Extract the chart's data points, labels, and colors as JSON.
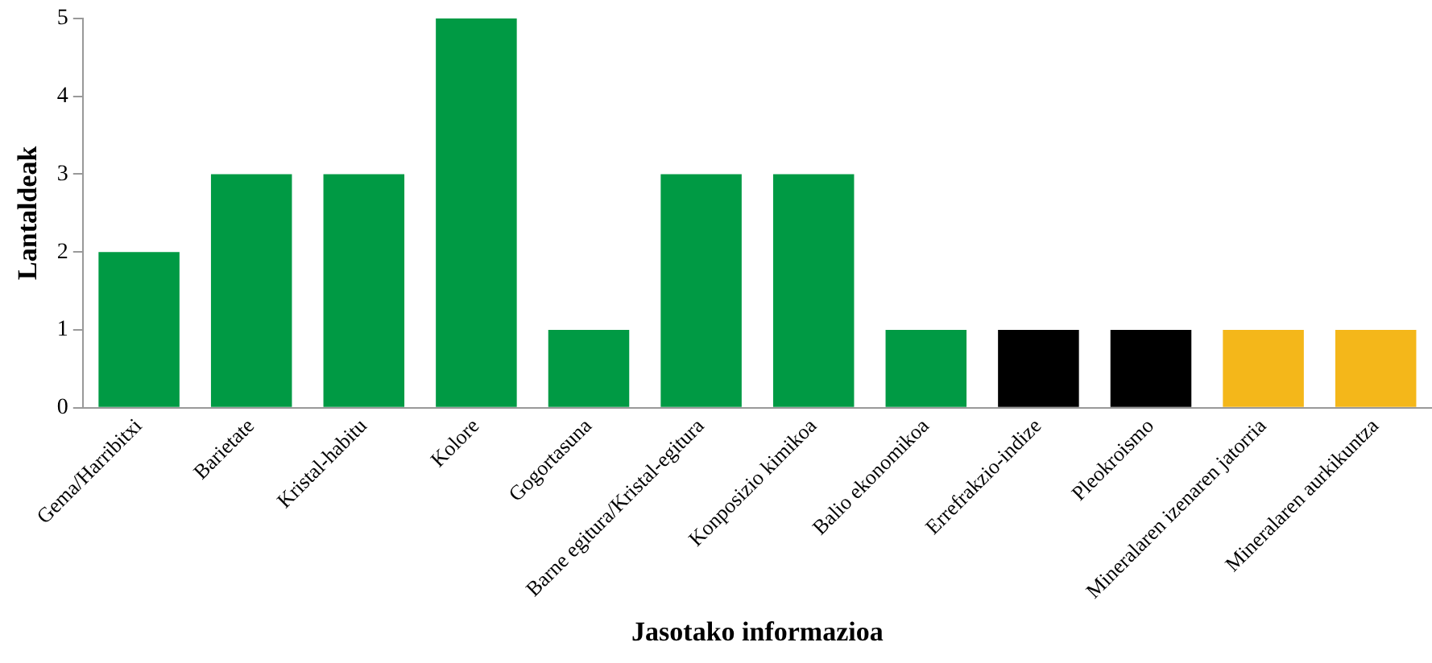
{
  "chart_data": {
    "type": "bar",
    "xlabel": "Jasotako informazioa",
    "ylabel": "Lantaldeak",
    "categories": [
      "Gema/Harribitxi",
      "Barietate",
      "Kristal-habitu",
      "Kolore",
      "Gogortasuna",
      "Barne egitura/Kristal-egitura",
      "Konposizio kimikoa",
      "Balio ekonomikoa",
      "Errefrakzio-indize",
      "Pleokroismo",
      "Mineralaren izenaren jatorria",
      "Mineralaren aurkikuntza"
    ],
    "values": [
      2,
      3,
      3,
      5,
      1,
      3,
      3,
      1,
      1,
      1,
      1,
      1
    ],
    "colors": [
      "#009a44",
      "#009a44",
      "#009a44",
      "#009a44",
      "#009a44",
      "#009a44",
      "#009a44",
      "#009a44",
      "#000000",
      "#000000",
      "#f4b71a",
      "#f4b71a"
    ],
    "ylim": [
      0,
      5
    ],
    "yticks": [
      0,
      1,
      2,
      3,
      4,
      5
    ],
    "grid": false,
    "legend": false
  }
}
